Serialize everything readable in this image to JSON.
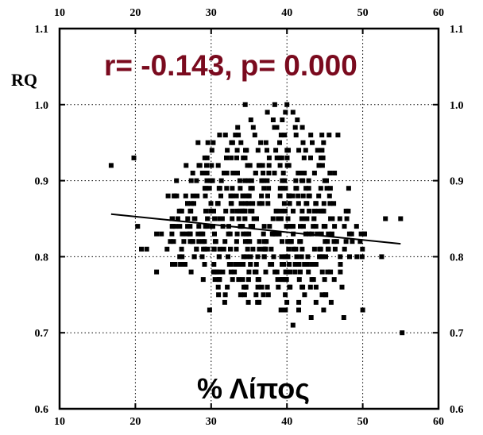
{
  "chart_data": {
    "type": "scatter",
    "title": "",
    "annotation": "r= -0.143, p= 0.000",
    "annotation_color": "#7a0a1e",
    "xlabel": "% Λίπος",
    "ylabel": "RQ",
    "xlim": [
      10,
      60
    ],
    "ylim": [
      0.6,
      1.1
    ],
    "x_ticks": [
      "10",
      "20",
      "30",
      "40",
      "50",
      "60"
    ],
    "y_ticks": [
      "0.6",
      "0.7",
      "0.8",
      "0.9",
      "1.0",
      "1.1"
    ],
    "grid_x": [
      20,
      30,
      40,
      50
    ],
    "grid_y": [
      0.7,
      0.8,
      0.9,
      1.0
    ],
    "grid_style": "dotted",
    "marker": "square",
    "marker_color": "#000000",
    "trendline": {
      "x": [
        16.8,
        55
      ],
      "y": [
        0.856,
        0.817
      ]
    },
    "outliers": [
      {
        "x": 16.8,
        "y": 0.92
      },
      {
        "x": 19.8,
        "y": 0.93
      },
      {
        "x": 20.3,
        "y": 0.84
      },
      {
        "x": 20.8,
        "y": 0.81
      },
      {
        "x": 21.5,
        "y": 0.81
      },
      {
        "x": 22.8,
        "y": 0.78
      },
      {
        "x": 34.5,
        "y": 1.0
      },
      {
        "x": 38.4,
        "y": 1.0
      },
      {
        "x": 40.0,
        "y": 1.0
      },
      {
        "x": 39.8,
        "y": 0.73
      },
      {
        "x": 40.8,
        "y": 0.71
      },
      {
        "x": 43.2,
        "y": 0.72
      },
      {
        "x": 47.5,
        "y": 0.72
      },
      {
        "x": 50.0,
        "y": 0.73
      },
      {
        "x": 50.2,
        "y": 0.83
      },
      {
        "x": 52.5,
        "y": 0.8
      },
      {
        "x": 53.0,
        "y": 0.85
      },
      {
        "x": 55.0,
        "y": 0.85
      },
      {
        "x": 55.2,
        "y": 0.7
      },
      {
        "x": 29.8,
        "y": 0.73
      }
    ],
    "cloud_rows": [
      {
        "y": 0.99,
        "x_range": [
          36.5,
          41.5
        ],
        "n": 3
      },
      {
        "y": 0.98,
        "x_range": [
          33.0,
          43.5
        ],
        "n": 4
      },
      {
        "y": 0.97,
        "x_range": [
          32.0,
          44.5
        ],
        "n": 6
      },
      {
        "y": 0.96,
        "x_range": [
          27.5,
          49.5
        ],
        "n": 12
      },
      {
        "y": 0.95,
        "x_range": [
          25.5,
          46.5
        ],
        "n": 12
      },
      {
        "y": 0.94,
        "x_range": [
          29.5,
          46.0
        ],
        "n": 14
      },
      {
        "y": 0.93,
        "x_range": [
          28.0,
          46.5
        ],
        "n": 16
      },
      {
        "y": 0.92,
        "x_range": [
          24.5,
          47.5
        ],
        "n": 18
      },
      {
        "y": 0.91,
        "x_range": [
          25.5,
          47.5
        ],
        "n": 20
      },
      {
        "y": 0.9,
        "x_range": [
          24.0,
          47.5
        ],
        "n": 22
      },
      {
        "y": 0.89,
        "x_range": [
          26.0,
          48.5
        ],
        "n": 24
      },
      {
        "y": 0.88,
        "x_range": [
          22.0,
          47.5
        ],
        "n": 30
      },
      {
        "y": 0.87,
        "x_range": [
          25.0,
          48.5
        ],
        "n": 28
      },
      {
        "y": 0.86,
        "x_range": [
          23.0,
          49.0
        ],
        "n": 32
      },
      {
        "y": 0.85,
        "x_range": [
          22.5,
          50.0
        ],
        "n": 34
      },
      {
        "y": 0.84,
        "x_range": [
          21.5,
          49.5
        ],
        "n": 36
      },
      {
        "y": 0.83,
        "x_range": [
          21.0,
          51.0
        ],
        "n": 36
      },
      {
        "y": 0.82,
        "x_range": [
          22.0,
          52.0
        ],
        "n": 34
      },
      {
        "y": 0.81,
        "x_range": [
          23.0,
          50.5
        ],
        "n": 32
      },
      {
        "y": 0.8,
        "x_range": [
          24.0,
          52.5
        ],
        "n": 30
      },
      {
        "y": 0.79,
        "x_range": [
          23.5,
          47.5
        ],
        "n": 26
      },
      {
        "y": 0.78,
        "x_range": [
          26.5,
          48.5
        ],
        "n": 24
      },
      {
        "y": 0.77,
        "x_range": [
          27.0,
          47.5
        ],
        "n": 20
      },
      {
        "y": 0.76,
        "x_range": [
          29.0,
          48.5
        ],
        "n": 16
      },
      {
        "y": 0.75,
        "x_range": [
          28.5,
          47.5
        ],
        "n": 12
      },
      {
        "y": 0.74,
        "x_range": [
          29.5,
          48.0
        ],
        "n": 8
      },
      {
        "y": 0.73,
        "x_range": [
          36.0,
          46.5
        ],
        "n": 4
      }
    ]
  }
}
